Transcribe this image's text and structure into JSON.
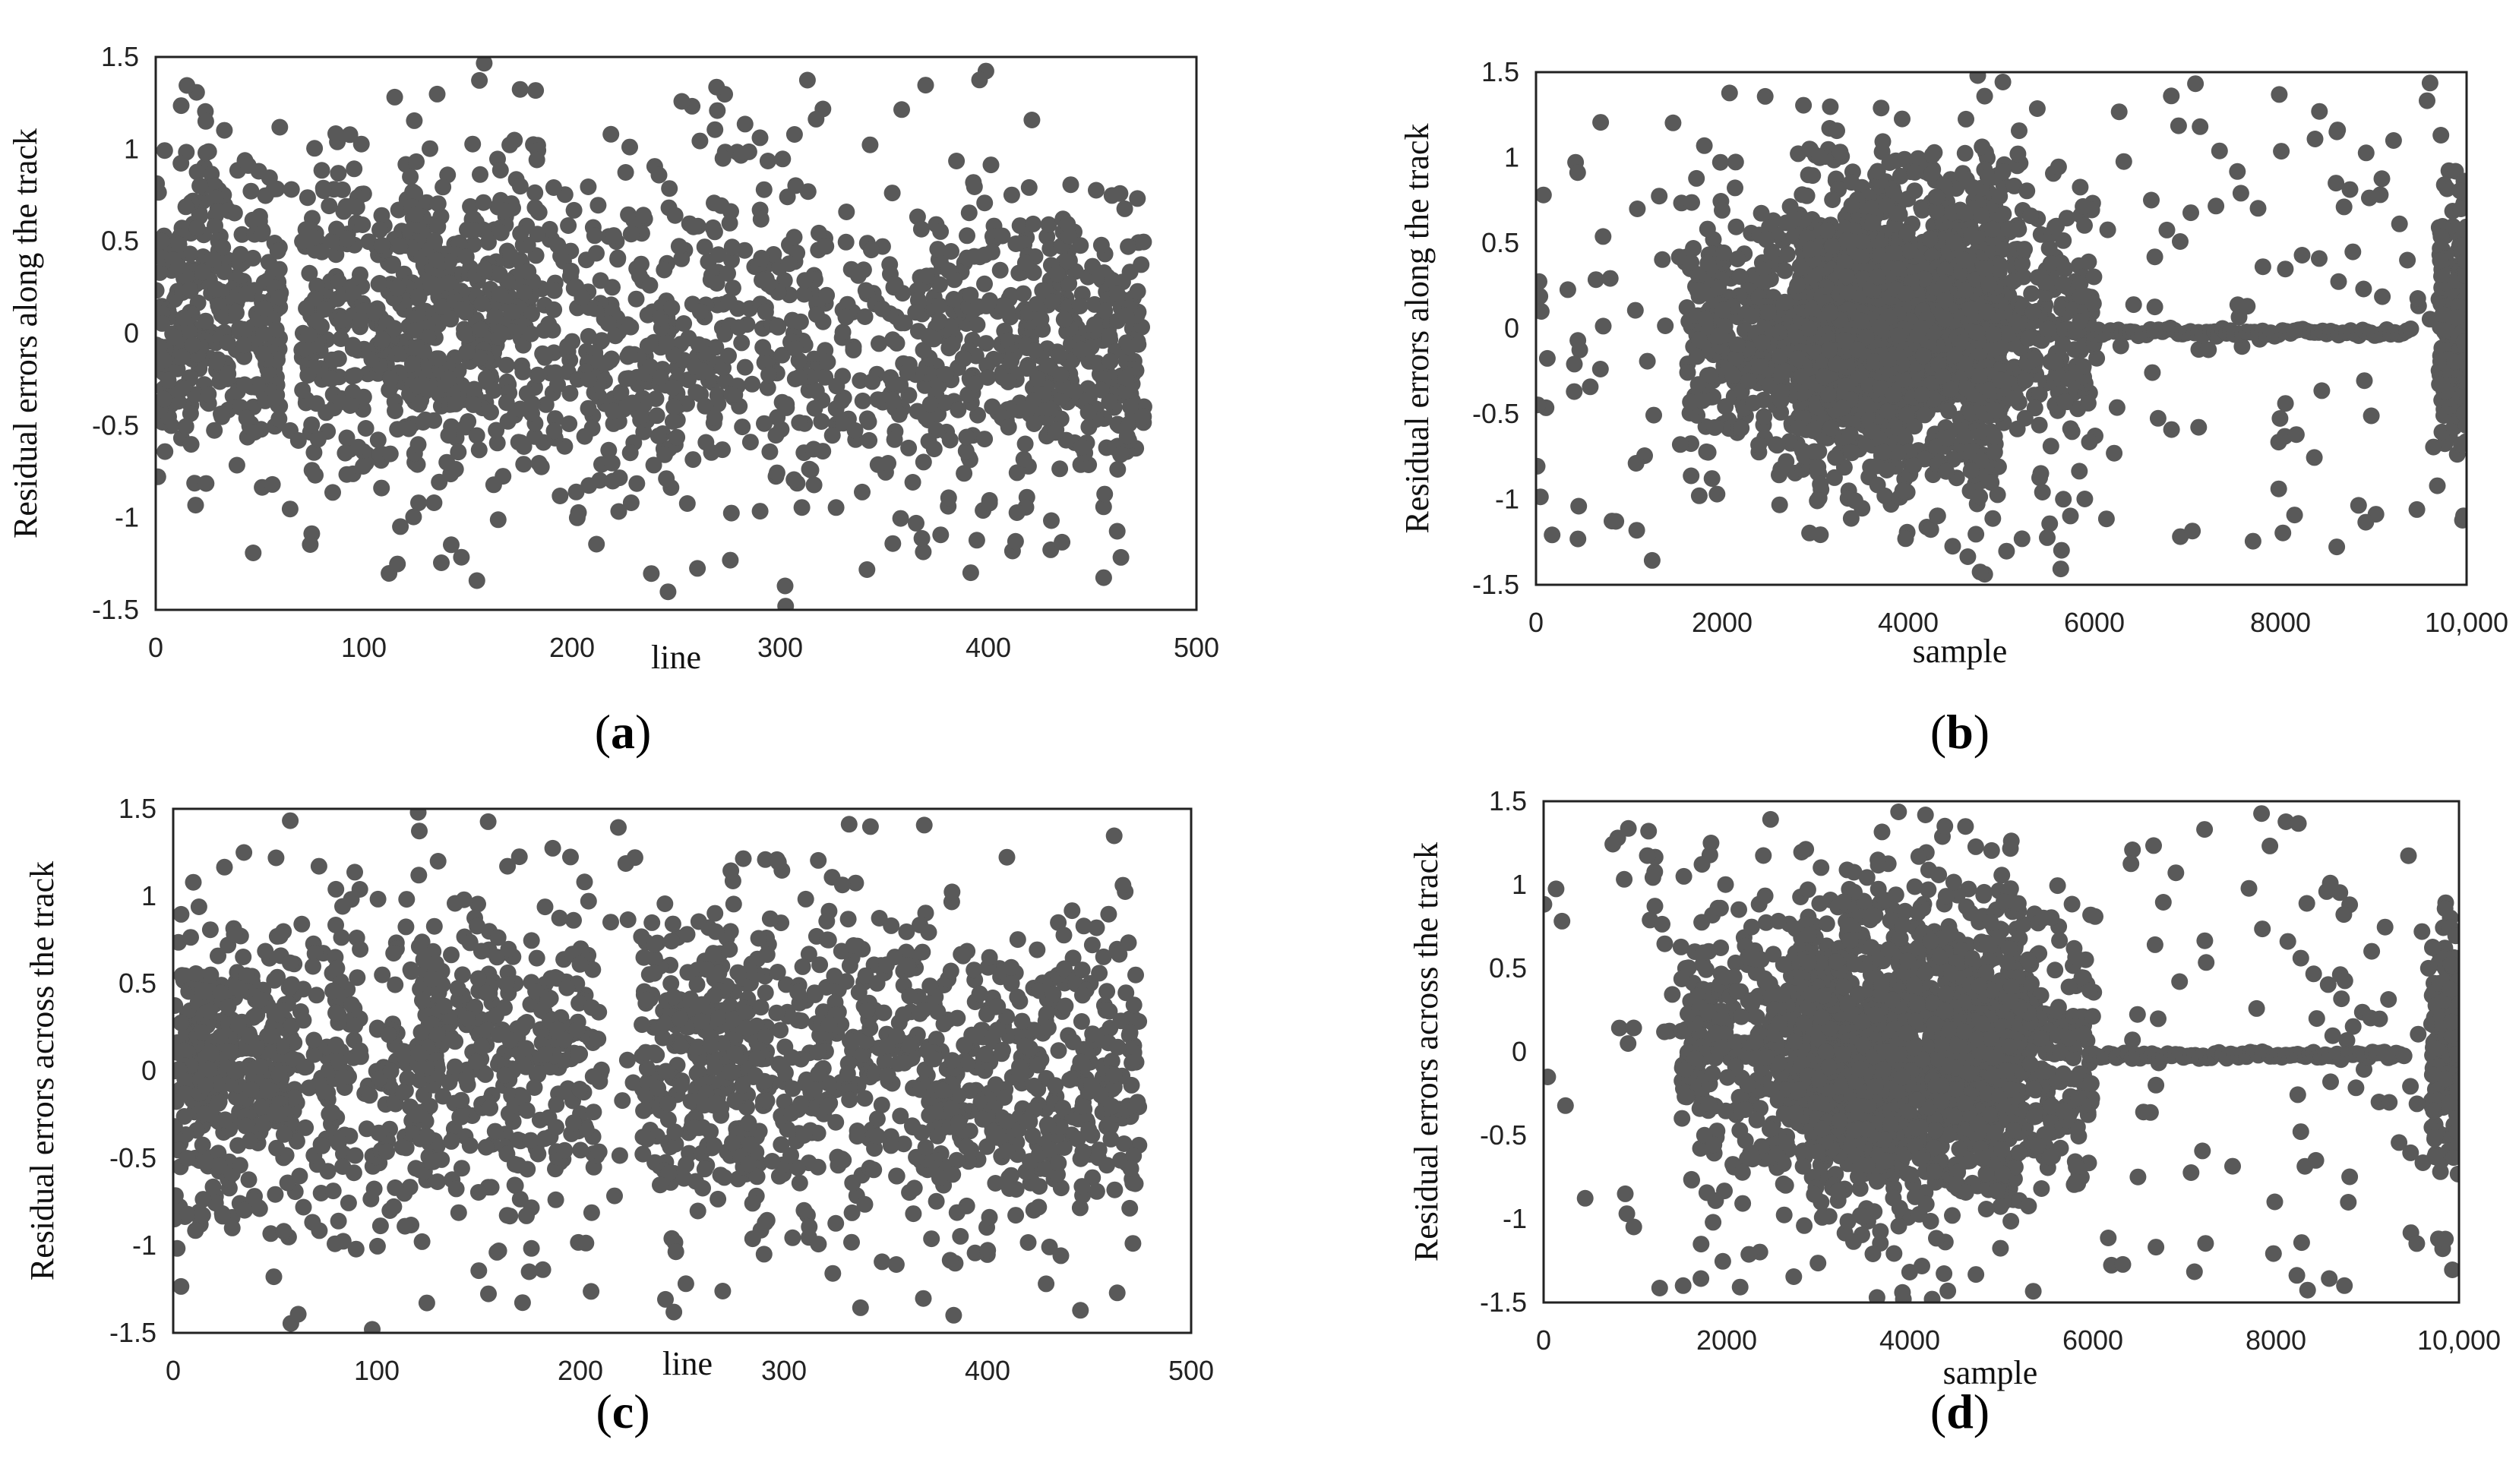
{
  "chart_data": [
    {
      "id": "a",
      "type": "scatter",
      "panel_label": "a",
      "xlabel": "line",
      "ylabel": "Residual errors along the track",
      "xlim": [
        0,
        500
      ],
      "ylim": [
        -1.5,
        1.5
      ],
      "x_ticks": [
        "0",
        "100",
        "200",
        "300",
        "400",
        "500"
      ],
      "y_ticks": [
        "1.5",
        "1",
        "0.5",
        "0",
        "-0.5",
        "-1",
        "-1.5"
      ],
      "marker_color": "#595959",
      "x_tick_values": [
        0,
        100,
        200,
        300,
        400,
        500
      ],
      "y_tick_values": [
        1.5,
        1,
        0.5,
        0,
        -0.5,
        -1,
        -1.5
      ],
      "clusters": [
        {
          "x": [
            0,
            60
          ],
          "y_center": 0.1,
          "y_spread": 0.75,
          "weight": 3
        },
        {
          "x": [
            70,
            130
          ],
          "y_center": 0.05,
          "y_spread": 0.8,
          "weight": 2.5
        },
        {
          "x": [
            120,
            185
          ],
          "y_center": 0.1,
          "y_spread": 0.8,
          "weight": 3
        },
        {
          "x": [
            185,
            240
          ],
          "y_center": -0.1,
          "y_spread": 0.85,
          "weight": 1.5
        },
        {
          "x": [
            240,
            320
          ],
          "y_center": 0.0,
          "y_spread": 0.8,
          "weight": 2
        },
        {
          "x": [
            320,
            400
          ],
          "y_center": -0.1,
          "y_spread": 0.8,
          "weight": 2
        },
        {
          "x": [
            400,
            475
          ],
          "y_center": -0.05,
          "y_spread": 0.75,
          "weight": 3
        }
      ],
      "uniform_x": [
        0,
        475
      ],
      "n_points": 1900
    },
    {
      "id": "b",
      "type": "scatter",
      "panel_label": "b",
      "xlabel": "sample",
      "ylabel": "Residual errors along the track",
      "xlim": [
        0,
        10000
      ],
      "ylim": [
        -1.5,
        1.5
      ],
      "x_ticks": [
        "0",
        "2000",
        "4000",
        "6000",
        "8000",
        "10,000"
      ],
      "y_ticks": [
        "1.5",
        "1",
        "0.5",
        "0",
        "-0.5",
        "-1",
        "-1.5"
      ],
      "marker_color": "#595959",
      "x_tick_values": [
        0,
        2000,
        4000,
        6000,
        8000,
        10000
      ],
      "y_tick_values": [
        1.5,
        1,
        0.5,
        0,
        -0.5,
        -1,
        -1.5
      ],
      "clusters": [
        {
          "x": [
            1600,
            6000
          ],
          "y_center": 0.0,
          "y_spread": 0.7,
          "weight": 6
        },
        {
          "x": [
            2800,
            5000
          ],
          "y_center": 0.0,
          "y_spread": 0.85,
          "weight": 6
        },
        {
          "x": [
            9700,
            10000
          ],
          "y_center": 0.0,
          "y_spread": 0.6,
          "weight": 1.2
        }
      ],
      "uniform_x": [
        0,
        10000
      ],
      "uniform_weight": 1.2,
      "flat_line": {
        "x": [
          6000,
          9400
        ],
        "y": -0.02,
        "n": 80
      },
      "n_points": 2400
    },
    {
      "id": "c",
      "type": "scatter",
      "panel_label": "c",
      "xlabel": "line",
      "ylabel": "Residual errors across the track",
      "xlim": [
        0,
        500
      ],
      "ylim": [
        -1.5,
        1.5
      ],
      "x_ticks": [
        "0",
        "100",
        "200",
        "300",
        "400",
        "500"
      ],
      "y_ticks": [
        "1.5",
        "1",
        "0.5",
        "0",
        "-0.5",
        "-1",
        "-1.5"
      ],
      "marker_color": "#595959",
      "x_tick_values": [
        0,
        100,
        200,
        300,
        400,
        500
      ],
      "y_tick_values": [
        1.5,
        1,
        0.5,
        0,
        -0.5,
        -1,
        -1.5
      ],
      "clusters": [
        {
          "x": [
            0,
            60
          ],
          "y_center": 0.0,
          "y_spread": 0.75,
          "weight": 3
        },
        {
          "x": [
            60,
            130
          ],
          "y_center": 0.0,
          "y_spread": 0.8,
          "weight": 1.5
        },
        {
          "x": [
            120,
            210
          ],
          "y_center": 0.1,
          "y_spread": 0.75,
          "weight": 3
        },
        {
          "x": [
            230,
            290
          ],
          "y_center": 0.05,
          "y_spread": 0.8,
          "weight": 2.5
        },
        {
          "x": [
            290,
            370
          ],
          "y_center": 0.0,
          "y_spread": 0.85,
          "weight": 2
        },
        {
          "x": [
            370,
            475
          ],
          "y_center": -0.1,
          "y_spread": 0.75,
          "weight": 3
        }
      ],
      "uniform_x": [
        0,
        475
      ],
      "n_points": 1900
    },
    {
      "id": "d",
      "type": "scatter",
      "panel_label": "d",
      "xlabel": "sample",
      "ylabel": "Residual errors across the track",
      "xlim": [
        0,
        10000
      ],
      "ylim": [
        -1.5,
        1.5
      ],
      "x_ticks": [
        "0",
        "2000",
        "4000",
        "6000",
        "8000",
        "10,000"
      ],
      "y_ticks": [
        "1.5",
        "1",
        "0.5",
        "0",
        "-0.5",
        "-1",
        "-1.5"
      ],
      "marker_color": "#595959",
      "x_tick_values": [
        0,
        2000,
        4000,
        6000,
        8000,
        10000
      ],
      "y_tick_values": [
        1.5,
        1,
        0.5,
        0,
        -0.5,
        -1,
        -1.5
      ],
      "clusters": [
        {
          "x": [
            1500,
            6000
          ],
          "y_center": 0.0,
          "y_spread": 0.75,
          "weight": 6
        },
        {
          "x": [
            2800,
            5200
          ],
          "y_center": 0.0,
          "y_spread": 0.9,
          "weight": 6
        },
        {
          "x": [
            9700,
            10000
          ],
          "y_center": 0.0,
          "y_spread": 0.6,
          "weight": 1.2
        }
      ],
      "uniform_x": [
        0,
        10000
      ],
      "uniform_weight": 1.2,
      "flat_line": {
        "x": [
          6000,
          9400
        ],
        "y": -0.02,
        "n": 80
      },
      "n_points": 2400
    }
  ]
}
